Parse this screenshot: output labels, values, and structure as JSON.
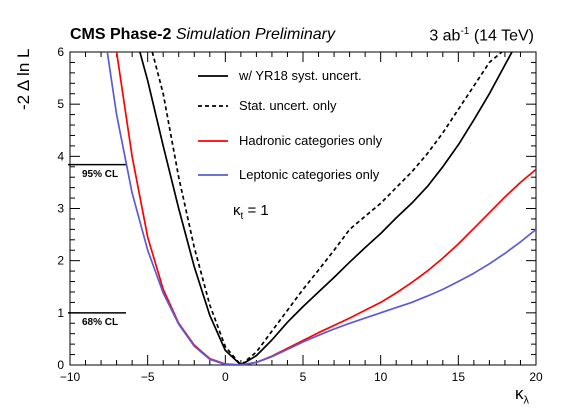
{
  "header": {
    "experiment": "CMS Phase-2",
    "status": "Simulation Preliminary",
    "lumi_value": "3 ab",
    "lumi_exp": "-1",
    "energy": "(14 TeV)"
  },
  "axes": {
    "ylabel": "-2 Δ ln L",
    "xlabel_main": "κ",
    "xlabel_sub": "λ"
  },
  "annotation": {
    "kappa_main": "κ",
    "kappa_sub": "t",
    "kappa_rest": " = 1"
  },
  "cl_lines": [
    {
      "label": "95% CL",
      "y": 3.84
    },
    {
      "label": "68% CL",
      "y": 1.0
    }
  ],
  "colors": {
    "syst": "#000000",
    "stat": "#000000",
    "hadronic": "#ff0000",
    "leptonic": "#5b5bd6"
  },
  "chart_data": {
    "type": "line",
    "title": "",
    "xlabel": "κλ",
    "ylabel": "-2 Δ ln L",
    "xlim": [
      -10,
      20
    ],
    "ylim": [
      0,
      6
    ],
    "xticks": [
      -10,
      -5,
      0,
      5,
      10,
      15,
      20
    ],
    "yticks": [
      0,
      1,
      2,
      3,
      4,
      5,
      6
    ],
    "legend_position": "top-center",
    "series": [
      {
        "name": "w/ YR18 syst. uncert.",
        "style": "solid",
        "color": "#000000",
        "x": [
          -5.5,
          -5,
          -4,
          -3,
          -2,
          -1,
          0,
          1,
          2,
          3,
          4,
          5,
          6,
          7,
          8,
          9,
          10,
          11,
          12,
          13,
          14,
          15,
          16,
          17,
          18,
          19,
          20
        ],
        "y": [
          6.0,
          5.45,
          4.2,
          3.0,
          1.88,
          0.95,
          0.28,
          0.0,
          0.18,
          0.48,
          0.82,
          1.12,
          1.4,
          1.68,
          1.97,
          2.25,
          2.52,
          2.82,
          3.1,
          3.42,
          3.8,
          4.22,
          4.7,
          5.2,
          5.75,
          6.3,
          6.9
        ]
      },
      {
        "name": "Stat. uncert. only",
        "style": "dashed",
        "color": "#000000",
        "x": [
          -4.7,
          -4,
          -3,
          -2,
          -1,
          0,
          1,
          2,
          3,
          4,
          5,
          6,
          7,
          8,
          9,
          10,
          11,
          12,
          13,
          14,
          15,
          16,
          17,
          17.8
        ],
        "y": [
          6.0,
          5.2,
          3.6,
          2.25,
          1.15,
          0.35,
          0.0,
          0.25,
          0.65,
          1.05,
          1.45,
          1.82,
          2.2,
          2.6,
          2.85,
          3.1,
          3.4,
          3.7,
          4.05,
          4.45,
          4.9,
          5.35,
          5.8,
          6.0
        ]
      },
      {
        "name": "Hadronic categories only",
        "style": "solid",
        "color": "#ff0000",
        "x": [
          -7,
          -6,
          -5,
          -4,
          -3,
          -2,
          -1,
          0,
          1,
          2,
          3,
          4,
          5,
          6,
          7,
          8,
          9,
          10,
          11,
          12,
          13,
          14,
          15,
          16,
          17,
          18,
          19,
          20
        ],
        "y": [
          6.0,
          4.0,
          2.45,
          1.45,
          0.8,
          0.38,
          0.12,
          0.02,
          0.0,
          0.05,
          0.17,
          0.32,
          0.47,
          0.62,
          0.76,
          0.9,
          1.05,
          1.2,
          1.38,
          1.58,
          1.8,
          2.05,
          2.32,
          2.62,
          2.92,
          3.22,
          3.5,
          3.75
        ]
      },
      {
        "name": "Leptonic categories only",
        "style": "solid",
        "color": "#5b5bd6",
        "x": [
          -7.6,
          -7,
          -6,
          -5,
          -4,
          -3,
          -2,
          -1,
          0,
          1,
          2,
          3,
          4,
          5,
          6,
          7,
          8,
          9,
          10,
          11,
          12,
          13,
          14,
          15,
          16,
          17,
          18,
          19,
          20
        ],
        "y": [
          6.0,
          4.8,
          3.3,
          2.2,
          1.38,
          0.78,
          0.36,
          0.11,
          0.01,
          0.0,
          0.05,
          0.16,
          0.3,
          0.44,
          0.57,
          0.69,
          0.8,
          0.9,
          1.0,
          1.1,
          1.2,
          1.32,
          1.45,
          1.6,
          1.76,
          1.94,
          2.14,
          2.36,
          2.6
        ]
      }
    ]
  }
}
